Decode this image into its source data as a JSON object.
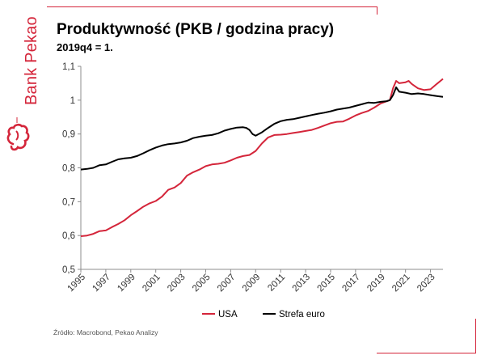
{
  "brand": {
    "name": "Bank Pekao"
  },
  "header": {
    "title": "Produktywność (PKB / godzina pracy)",
    "subtitle": "2019q4 = 1."
  },
  "footer": {
    "source": "Źródło: Macrobond, Pekao Analizy"
  },
  "colors": {
    "accent": "#d4253a",
    "usa": "#d4253a",
    "euro": "#000000"
  },
  "chart_data": {
    "type": "line",
    "title": "Produktywność (PKB / godzina pracy)",
    "subtitle": "2019q4 = 1.",
    "ylim": [
      0.5,
      1.1
    ],
    "yticks": [
      "0,5",
      "0,6",
      "0,7",
      "0,8",
      "0,9",
      "1",
      "1,1"
    ],
    "xlim": [
      1995,
      2024
    ],
    "xticks": [
      "1995",
      "1997",
      "1999",
      "2001",
      "2003",
      "2005",
      "2007",
      "2009",
      "2011",
      "2013",
      "2015",
      "2017",
      "2019",
      "2021",
      "2023"
    ],
    "grid": false,
    "legend_position": "bottom",
    "series": [
      {
        "name": "USA",
        "color": "#d4253a",
        "x": [
          1995,
          1995.5,
          1996,
          1996.5,
          1997,
          1997.5,
          1998,
          1998.5,
          1999,
          1999.5,
          2000,
          2000.5,
          2001,
          2001.5,
          2002,
          2002.5,
          2003,
          2003.5,
          2004,
          2004.5,
          2005,
          2005.5,
          2006,
          2006.5,
          2007,
          2007.5,
          2008,
          2008.5,
          2009,
          2009.5,
          2010,
          2010.5,
          2011,
          2011.5,
          2012,
          2012.5,
          2013,
          2013.5,
          2014,
          2014.5,
          2015,
          2015.5,
          2016,
          2016.5,
          2017,
          2017.5,
          2018,
          2018.5,
          2019,
          2019.5,
          2019.75,
          2020,
          2020.25,
          2020.5,
          2021,
          2021.25,
          2021.5,
          2022,
          2022.5,
          2023,
          2023.5,
          2024
        ],
        "y": [
          0.598,
          0.6,
          0.605,
          0.613,
          0.615,
          0.625,
          0.634,
          0.645,
          0.66,
          0.672,
          0.685,
          0.695,
          0.702,
          0.715,
          0.735,
          0.742,
          0.755,
          0.777,
          0.787,
          0.795,
          0.805,
          0.81,
          0.812,
          0.815,
          0.822,
          0.83,
          0.835,
          0.838,
          0.85,
          0.872,
          0.89,
          0.897,
          0.898,
          0.9,
          0.903,
          0.906,
          0.909,
          0.912,
          0.918,
          0.925,
          0.932,
          0.936,
          0.937,
          0.945,
          0.955,
          0.962,
          0.968,
          0.978,
          0.99,
          0.997,
          1.0,
          1.035,
          1.057,
          1.05,
          1.053,
          1.057,
          1.048,
          1.035,
          1.03,
          1.032,
          1.048,
          1.063
        ]
      },
      {
        "name": "Strefa euro",
        "color": "#000000",
        "x": [
          1995,
          1995.5,
          1996,
          1996.5,
          1997,
          1997.5,
          1998,
          1998.5,
          1999,
          1999.5,
          2000,
          2000.5,
          2001,
          2001.5,
          2002,
          2002.5,
          2003,
          2003.5,
          2004,
          2004.5,
          2005,
          2005.5,
          2006,
          2006.5,
          2007,
          2007.5,
          2008,
          2008.25,
          2008.5,
          2008.75,
          2009,
          2009.5,
          2010,
          2010.5,
          2011,
          2011.5,
          2012,
          2012.5,
          2013,
          2013.5,
          2014,
          2014.5,
          2015,
          2015.5,
          2016,
          2016.5,
          2017,
          2017.5,
          2018,
          2018.5,
          2019,
          2019.5,
          2019.75,
          2020,
          2020.25,
          2020.5,
          2021,
          2021.5,
          2022,
          2022.5,
          2023,
          2023.5,
          2024
        ],
        "y": [
          0.795,
          0.797,
          0.8,
          0.808,
          0.81,
          0.818,
          0.825,
          0.828,
          0.83,
          0.835,
          0.843,
          0.852,
          0.86,
          0.866,
          0.87,
          0.872,
          0.875,
          0.88,
          0.888,
          0.892,
          0.895,
          0.897,
          0.902,
          0.91,
          0.915,
          0.919,
          0.92,
          0.918,
          0.912,
          0.9,
          0.895,
          0.905,
          0.918,
          0.93,
          0.938,
          0.942,
          0.944,
          0.948,
          0.952,
          0.956,
          0.96,
          0.963,
          0.967,
          0.972,
          0.975,
          0.978,
          0.983,
          0.988,
          0.993,
          0.992,
          0.995,
          0.997,
          1.0,
          1.015,
          1.038,
          1.025,
          1.022,
          1.018,
          1.02,
          1.018,
          1.015,
          1.012,
          1.01
        ]
      }
    ]
  }
}
